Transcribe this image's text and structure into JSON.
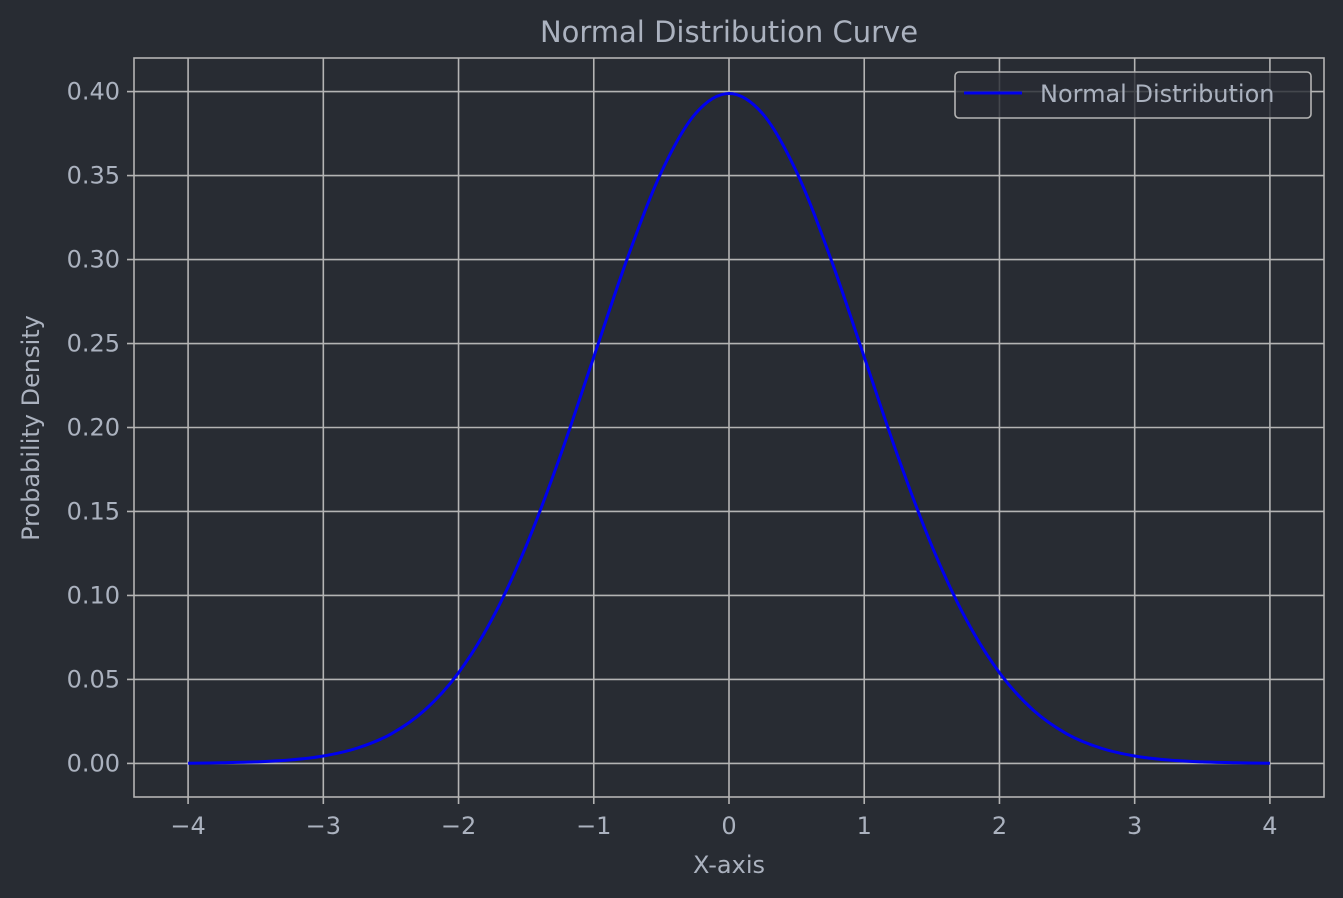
{
  "theme": {
    "background": "#282c33",
    "text": "#abb2bf",
    "grid": "#b4b4b4",
    "axis": "#b4b4b4",
    "series_color": "#0000ee"
  },
  "chart_data": {
    "type": "line",
    "title": "Normal Distribution Curve",
    "xlabel": "X-axis",
    "ylabel": "Probability Density",
    "xlim": [
      -4.4,
      4.4
    ],
    "ylim": [
      -0.02,
      0.42
    ],
    "xticks": [
      -4,
      -3,
      -2,
      -1,
      0,
      1,
      2,
      3,
      4
    ],
    "xtick_labels": [
      "−4",
      "−3",
      "−2",
      "−1",
      "0",
      "1",
      "2",
      "3",
      "4"
    ],
    "yticks": [
      0.0,
      0.05,
      0.1,
      0.15,
      0.2,
      0.25,
      0.3,
      0.35,
      0.4
    ],
    "ytick_labels": [
      "0.00",
      "0.05",
      "0.10",
      "0.15",
      "0.20",
      "0.25",
      "0.30",
      "0.35",
      "0.40"
    ],
    "grid": true,
    "legend_position": "top-right",
    "series": [
      {
        "name": "Normal Distribution",
        "color": "#0000ee",
        "x": [
          -4.0,
          -3.75,
          -3.5,
          -3.25,
          -3.0,
          -2.75,
          -2.5,
          -2.25,
          -2.0,
          -1.75,
          -1.5,
          -1.25,
          -1.0,
          -0.75,
          -0.5,
          -0.25,
          0.0,
          0.25,
          0.5,
          0.75,
          1.0,
          1.25,
          1.5,
          1.75,
          2.0,
          2.25,
          2.5,
          2.75,
          3.0,
          3.25,
          3.5,
          3.75,
          4.0
        ],
        "y": [
          0.0001,
          0.0004,
          0.0009,
          0.002,
          0.0044,
          0.0091,
          0.0175,
          0.0317,
          0.054,
          0.0863,
          0.1295,
          0.1826,
          0.242,
          0.3011,
          0.3521,
          0.3867,
          0.3989,
          0.3867,
          0.3521,
          0.3011,
          0.242,
          0.1826,
          0.1295,
          0.0863,
          0.054,
          0.0317,
          0.0175,
          0.0091,
          0.0044,
          0.002,
          0.0009,
          0.0004,
          0.0001
        ]
      }
    ]
  }
}
